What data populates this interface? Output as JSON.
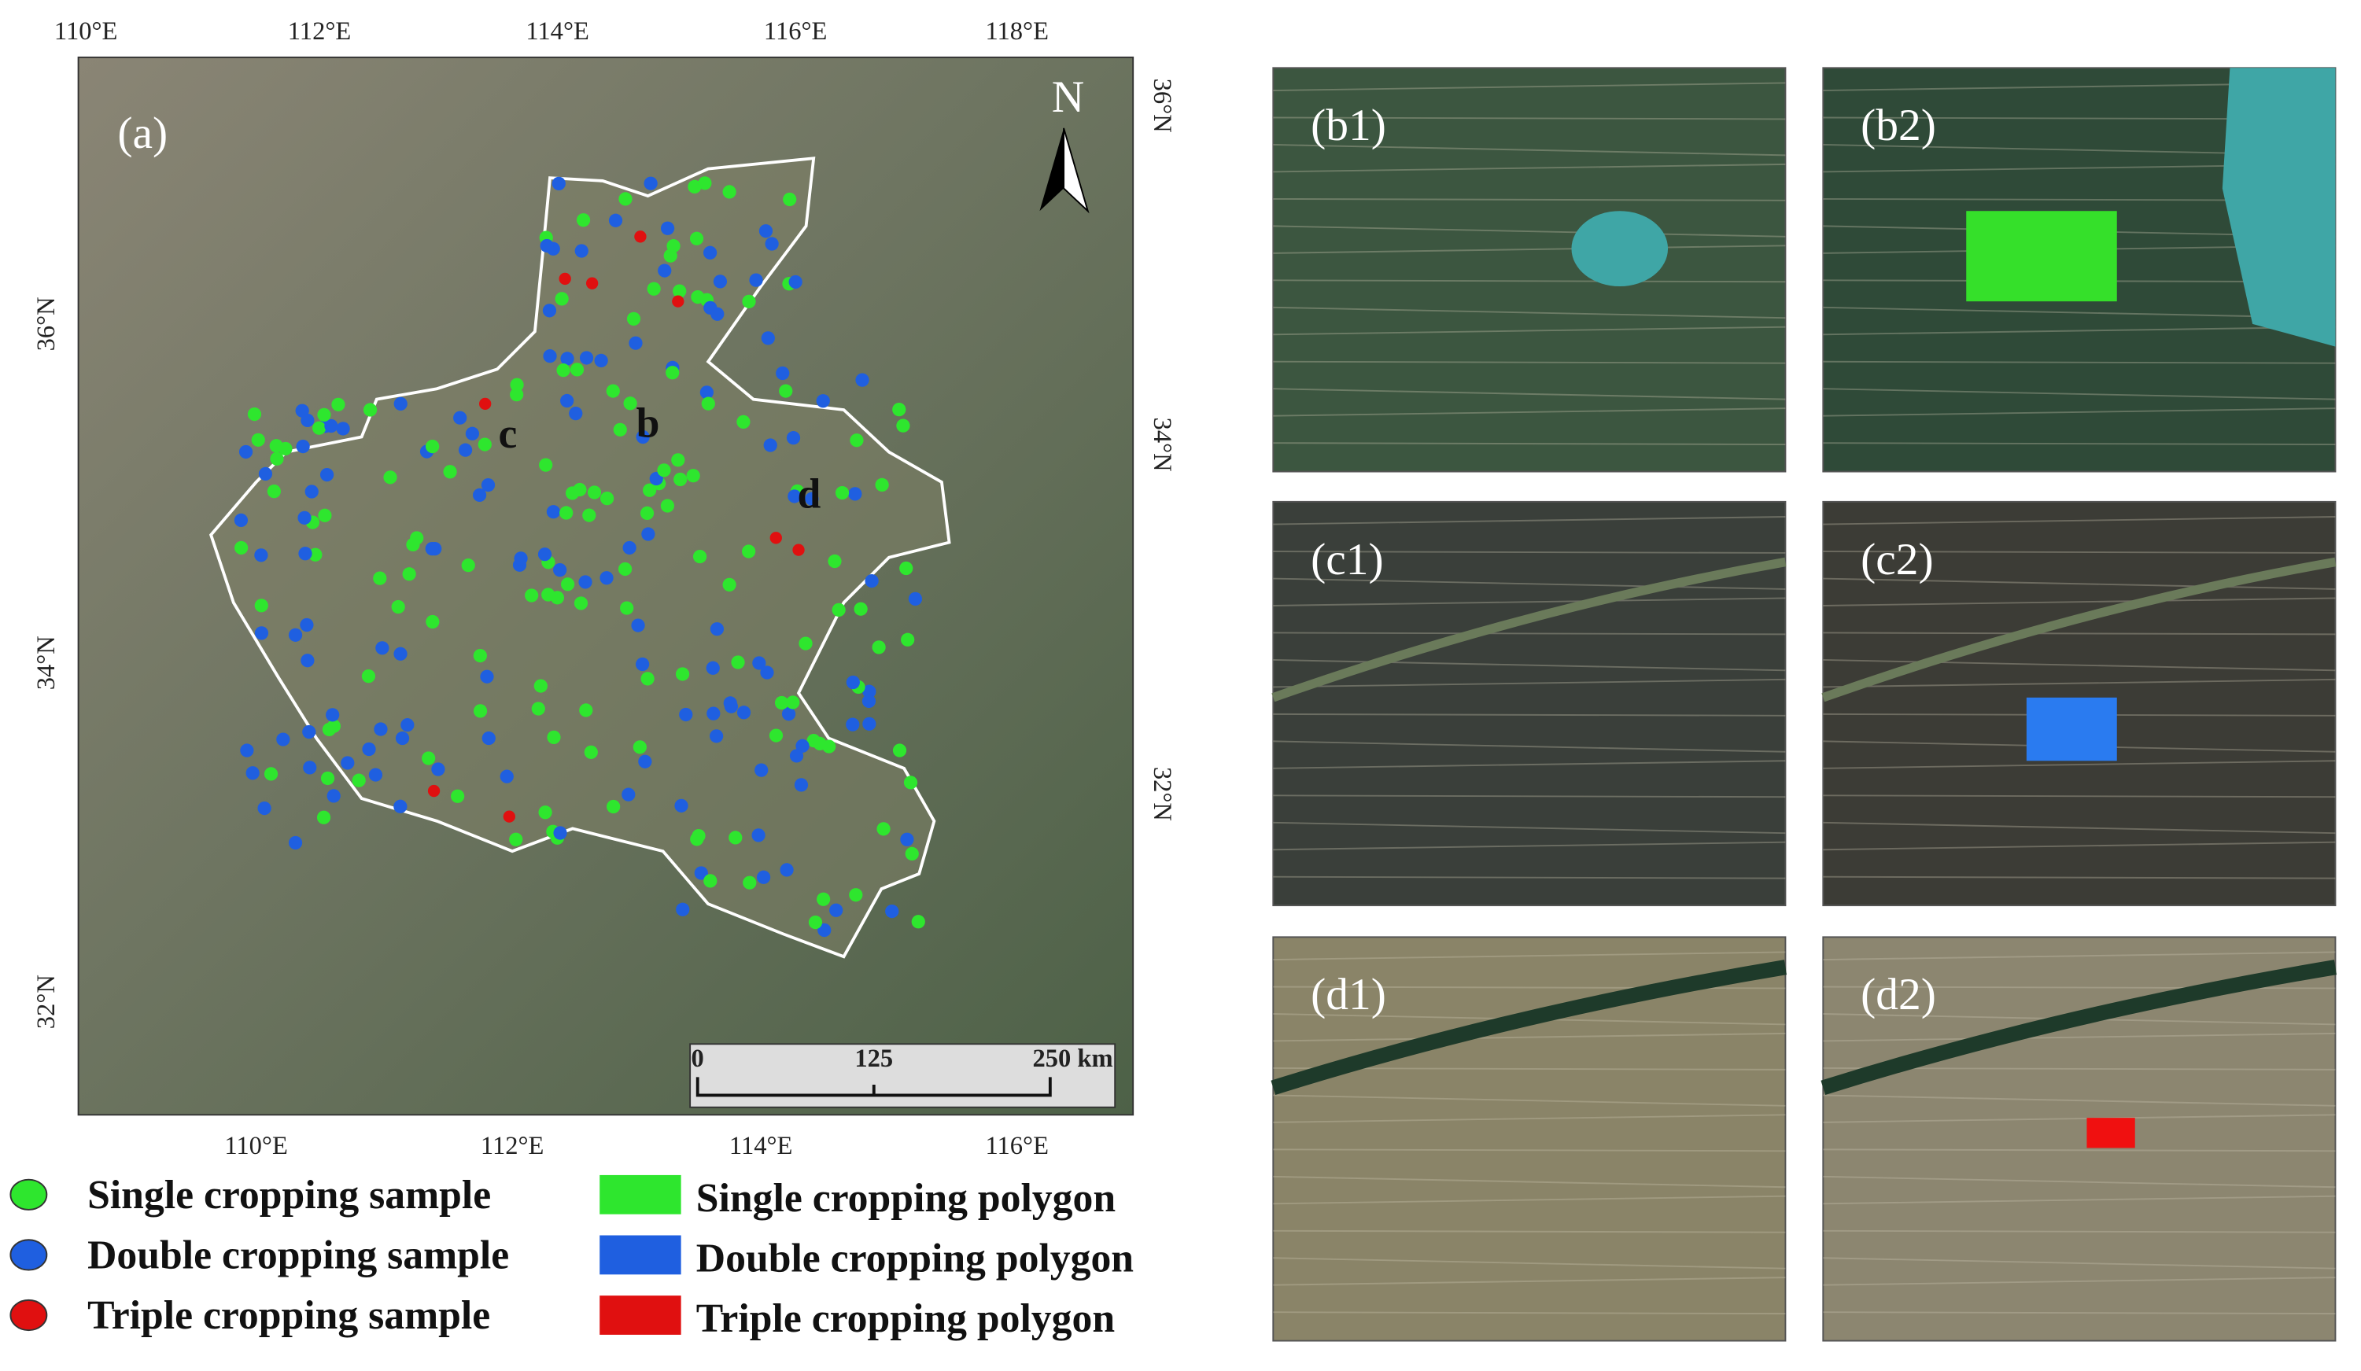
{
  "map": {
    "panel_label": "(a)",
    "top_ticks": [
      "110°E",
      "112°E",
      "114°E",
      "116°E",
      "118°E"
    ],
    "bottom_ticks": [
      "110°E",
      "112°E",
      "114°E",
      "116°E"
    ],
    "left_ticks": [
      "36°N",
      "34°N",
      "32°N"
    ],
    "right_ticks": [
      "36°N",
      "34°N",
      "32°N"
    ],
    "north": "N",
    "site_labels": [
      "b",
      "c",
      "d"
    ],
    "scale_bar": [
      "0",
      "125",
      "250 km"
    ]
  },
  "insets": [
    {
      "label": "(b1)"
    },
    {
      "label": "(b2)"
    },
    {
      "label": "(c1)"
    },
    {
      "label": "(c2)"
    },
    {
      "label": "(d1)"
    },
    {
      "label": "(d2)"
    }
  ],
  "legend": {
    "samples": [
      "Single cropping sample",
      "Double cropping sample",
      "Triple cropping sample"
    ],
    "polygons": [
      "Single cropping polygon",
      "Double cropping polygon",
      "Triple cropping polygon"
    ]
  }
}
